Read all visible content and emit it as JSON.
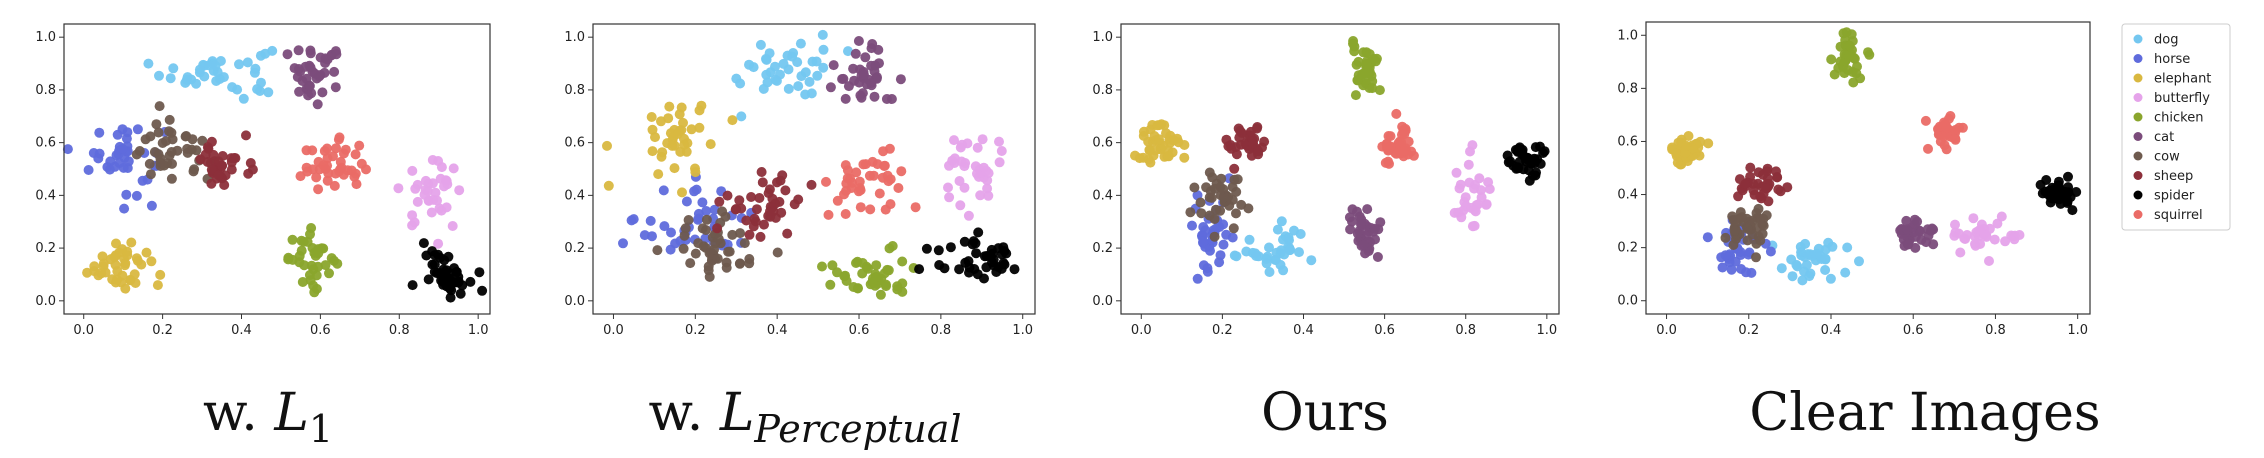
{
  "figure": {
    "captions": [
      {
        "main": "w. ",
        "script": "L",
        "sub": "1",
        "sub_italic": false
      },
      {
        "main": "w. ",
        "script": "L",
        "sub": "Perceptual",
        "sub_italic": true
      },
      {
        "main": "Ours",
        "script": "",
        "sub": "",
        "sub_italic": false
      },
      {
        "main": "Clear Images",
        "script": "",
        "sub": "",
        "sub_italic": false
      }
    ]
  },
  "legend": {
    "placement": "right",
    "entries": [
      {
        "label": "dog",
        "color": "#74c7f0"
      },
      {
        "label": "horse",
        "color": "#5f6bdc"
      },
      {
        "label": "elephant",
        "color": "#d9b840"
      },
      {
        "label": "butterfly",
        "color": "#e5a3ea"
      },
      {
        "label": "chicken",
        "color": "#8aa52c"
      },
      {
        "label": "cat",
        "color": "#7b4c7b"
      },
      {
        "label": "cow",
        "color": "#6e5a4e"
      },
      {
        "label": "sheep",
        "color": "#8c2f3a"
      },
      {
        "label": "spider",
        "color": "#000000"
      },
      {
        "label": "squirrel",
        "color": "#ea6b66"
      }
    ]
  },
  "chart_data": [
    {
      "type": "scatter",
      "xlim": [
        -0.05,
        1.03
      ],
      "ylim": [
        -0.05,
        1.05
      ],
      "xticks": [
        "0.0",
        "0.2",
        "0.4",
        "0.6",
        "0.8",
        "1.0"
      ],
      "yticks": [
        "0.0",
        "0.2",
        "0.4",
        "0.6",
        "0.8",
        "1.0"
      ],
      "grid": false,
      "clusters": [
        {
          "name": "dog",
          "cx": 0.34,
          "cy": 0.87,
          "sx": 0.07,
          "sy": 0.05,
          "n": 38
        },
        {
          "name": "horse",
          "cx": 0.1,
          "cy": 0.55,
          "sx": 0.05,
          "sy": 0.07,
          "n": 40
        },
        {
          "name": "elephant",
          "cx": 0.09,
          "cy": 0.14,
          "sx": 0.04,
          "sy": 0.05,
          "n": 40
        },
        {
          "name": "butterfly",
          "cx": 0.88,
          "cy": 0.4,
          "sx": 0.04,
          "sy": 0.06,
          "n": 35
        },
        {
          "name": "chicken",
          "cx": 0.58,
          "cy": 0.16,
          "sx": 0.03,
          "sy": 0.05,
          "n": 35
        },
        {
          "name": "cat",
          "cx": 0.59,
          "cy": 0.86,
          "sx": 0.04,
          "sy": 0.05,
          "n": 38
        },
        {
          "name": "cow",
          "cx": 0.22,
          "cy": 0.56,
          "sx": 0.05,
          "sy": 0.06,
          "n": 40
        },
        {
          "name": "sheep",
          "cx": 0.36,
          "cy": 0.52,
          "sx": 0.03,
          "sy": 0.05,
          "n": 35
        },
        {
          "name": "spider",
          "cx": 0.92,
          "cy": 0.11,
          "sx": 0.03,
          "sy": 0.04,
          "n": 45
        },
        {
          "name": "squirrel",
          "cx": 0.63,
          "cy": 0.51,
          "sx": 0.04,
          "sy": 0.05,
          "n": 40
        }
      ]
    },
    {
      "type": "scatter",
      "xlim": [
        -0.05,
        1.03
      ],
      "ylim": [
        -0.05,
        1.05
      ],
      "xticks": [
        "0.0",
        "0.2",
        "0.4",
        "0.6",
        "0.8",
        "1.0"
      ],
      "yticks": [
        "0.0",
        "0.2",
        "0.4",
        "0.6",
        "0.8",
        "1.0"
      ],
      "grid": false,
      "clusters": [
        {
          "name": "dog",
          "cx": 0.42,
          "cy": 0.88,
          "sx": 0.06,
          "sy": 0.06,
          "n": 38
        },
        {
          "name": "horse",
          "cx": 0.2,
          "cy": 0.3,
          "sx": 0.07,
          "sy": 0.08,
          "n": 40
        },
        {
          "name": "elephant",
          "cx": 0.15,
          "cy": 0.62,
          "sx": 0.05,
          "sy": 0.08,
          "n": 40
        },
        {
          "name": "butterfly",
          "cx": 0.88,
          "cy": 0.49,
          "sx": 0.04,
          "sy": 0.08,
          "n": 35
        },
        {
          "name": "chicken",
          "cx": 0.62,
          "cy": 0.1,
          "sx": 0.05,
          "sy": 0.04,
          "n": 40
        },
        {
          "name": "cat",
          "cx": 0.62,
          "cy": 0.86,
          "sx": 0.04,
          "sy": 0.06,
          "n": 38
        },
        {
          "name": "cow",
          "cx": 0.24,
          "cy": 0.2,
          "sx": 0.06,
          "sy": 0.07,
          "n": 45
        },
        {
          "name": "sheep",
          "cx": 0.36,
          "cy": 0.37,
          "sx": 0.05,
          "sy": 0.07,
          "n": 40
        },
        {
          "name": "spider",
          "cx": 0.9,
          "cy": 0.16,
          "sx": 0.05,
          "sy": 0.04,
          "n": 40
        },
        {
          "name": "squirrel",
          "cx": 0.62,
          "cy": 0.45,
          "sx": 0.06,
          "sy": 0.05,
          "n": 40
        }
      ]
    },
    {
      "type": "scatter",
      "xlim": [
        -0.05,
        1.03
      ],
      "ylim": [
        -0.05,
        1.05
      ],
      "xticks": [
        "0.0",
        "0.2",
        "0.4",
        "0.6",
        "0.8",
        "1.0"
      ],
      "yticks": [
        "0.0",
        "0.2",
        "0.4",
        "0.6",
        "0.8",
        "1.0"
      ],
      "grid": false,
      "clusters": [
        {
          "name": "dog",
          "cx": 0.35,
          "cy": 0.2,
          "sx": 0.06,
          "sy": 0.05,
          "n": 35
        },
        {
          "name": "horse",
          "cx": 0.17,
          "cy": 0.26,
          "sx": 0.025,
          "sy": 0.08,
          "n": 40
        },
        {
          "name": "elephant",
          "cx": 0.04,
          "cy": 0.58,
          "sx": 0.03,
          "sy": 0.05,
          "n": 40
        },
        {
          "name": "butterfly",
          "cx": 0.82,
          "cy": 0.38,
          "sx": 0.02,
          "sy": 0.08,
          "n": 30
        },
        {
          "name": "chicken",
          "cx": 0.55,
          "cy": 0.89,
          "sx": 0.02,
          "sy": 0.05,
          "n": 35
        },
        {
          "name": "cat",
          "cx": 0.55,
          "cy": 0.25,
          "sx": 0.02,
          "sy": 0.05,
          "n": 35
        },
        {
          "name": "cow",
          "cx": 0.2,
          "cy": 0.38,
          "sx": 0.03,
          "sy": 0.06,
          "n": 40
        },
        {
          "name": "sheep",
          "cx": 0.26,
          "cy": 0.6,
          "sx": 0.03,
          "sy": 0.03,
          "n": 35
        },
        {
          "name": "spider",
          "cx": 0.95,
          "cy": 0.54,
          "sx": 0.02,
          "sy": 0.04,
          "n": 40
        },
        {
          "name": "squirrel",
          "cx": 0.63,
          "cy": 0.58,
          "sx": 0.025,
          "sy": 0.04,
          "n": 40
        }
      ]
    },
    {
      "type": "scatter",
      "xlim": [
        -0.05,
        1.03
      ],
      "ylim": [
        -0.05,
        1.05
      ],
      "xticks": [
        "0.0",
        "0.2",
        "0.4",
        "0.6",
        "0.8",
        "1.0"
      ],
      "yticks": [
        "0.0",
        "0.2",
        "0.4",
        "0.6",
        "0.8",
        "1.0"
      ],
      "grid": false,
      "clusters": [
        {
          "name": "dog",
          "cx": 0.34,
          "cy": 0.15,
          "sx": 0.05,
          "sy": 0.04,
          "n": 35
        },
        {
          "name": "horse",
          "cx": 0.17,
          "cy": 0.18,
          "sx": 0.03,
          "sy": 0.06,
          "n": 40
        },
        {
          "name": "elephant",
          "cx": 0.05,
          "cy": 0.57,
          "sx": 0.02,
          "sy": 0.03,
          "n": 40
        },
        {
          "name": "butterfly",
          "cx": 0.78,
          "cy": 0.25,
          "sx": 0.04,
          "sy": 0.03,
          "n": 35
        },
        {
          "name": "chicken",
          "cx": 0.44,
          "cy": 0.91,
          "sx": 0.02,
          "sy": 0.04,
          "n": 35
        },
        {
          "name": "cat",
          "cx": 0.6,
          "cy": 0.25,
          "sx": 0.02,
          "sy": 0.03,
          "n": 35
        },
        {
          "name": "cow",
          "cx": 0.2,
          "cy": 0.28,
          "sx": 0.03,
          "sy": 0.05,
          "n": 40
        },
        {
          "name": "sheep",
          "cx": 0.23,
          "cy": 0.44,
          "sx": 0.03,
          "sy": 0.03,
          "n": 35
        },
        {
          "name": "spider",
          "cx": 0.95,
          "cy": 0.4,
          "sx": 0.02,
          "sy": 0.03,
          "n": 40
        },
        {
          "name": "squirrel",
          "cx": 0.68,
          "cy": 0.63,
          "sx": 0.02,
          "sy": 0.03,
          "n": 40
        }
      ]
    }
  ]
}
